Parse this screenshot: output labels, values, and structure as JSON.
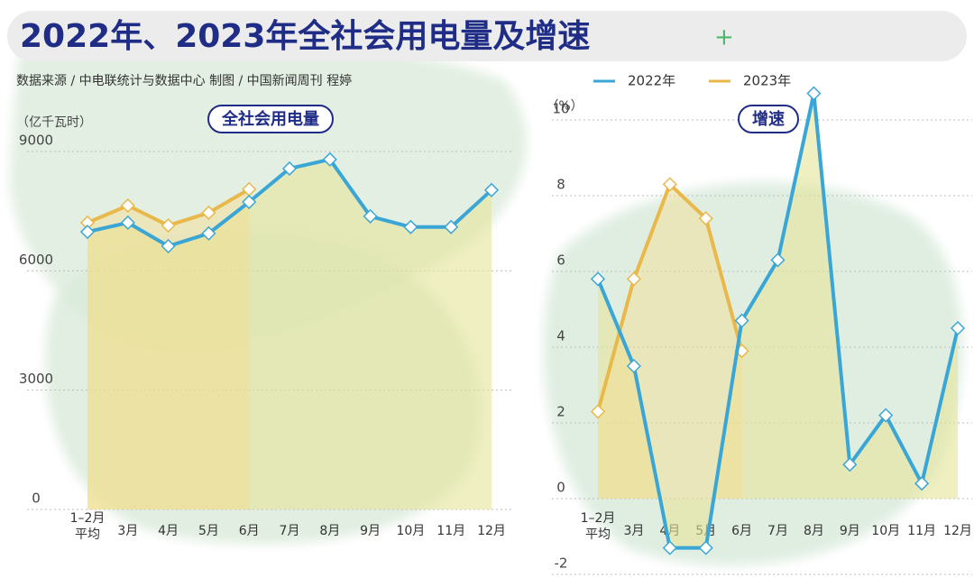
{
  "title": "2022年、2023年全社会用电量及增速",
  "source": "数据来源 / 中电联统计与数据中心  制图 / 中国新闻周刊  程婷",
  "chart_data": [
    {
      "type": "line",
      "title": "全社会用电量",
      "y_label": "（亿千瓦时）",
      "categories": [
        "1–2月\n平均",
        "3月",
        "4月",
        "5月",
        "6月",
        "7月",
        "8月",
        "9月",
        "10月",
        "11月",
        "12月"
      ],
      "series": [
        {
          "name": "2022年",
          "color": "#3aa6d6",
          "values": [
            6980,
            7210,
            6620,
            6940,
            7730,
            8570,
            8800,
            7370,
            7100,
            7100,
            8030
          ]
        },
        {
          "name": "2023年",
          "color": "#e9b84a",
          "values": [
            7210,
            7640,
            7140,
            7460,
            8050,
            null,
            null,
            null,
            null,
            null,
            null
          ]
        }
      ],
      "ylim": [
        0,
        9000
      ],
      "yticks": [
        0,
        3000,
        6000,
        9000
      ],
      "grid": true
    },
    {
      "type": "line",
      "title": "增速",
      "y_label": "（%）",
      "categories": [
        "1–2月\n平均",
        "3月",
        "4月",
        "5月",
        "6月",
        "7月",
        "8月",
        "9月",
        "10月",
        "11月",
        "12月"
      ],
      "series": [
        {
          "name": "2022年",
          "color": "#3aa6d6",
          "values": [
            5.8,
            3.5,
            -1.3,
            -1.3,
            4.7,
            6.3,
            10.7,
            0.9,
            2.2,
            0.4,
            4.5
          ]
        },
        {
          "name": "2023年",
          "color": "#e9b84a",
          "values": [
            2.3,
            5.8,
            8.3,
            7.4,
            3.9,
            null,
            null,
            null,
            null,
            null,
            null
          ]
        }
      ],
      "ylim": [
        -2,
        10
      ],
      "yticks": [
        -2,
        0,
        2,
        4,
        6,
        8,
        10
      ],
      "grid": true
    }
  ]
}
